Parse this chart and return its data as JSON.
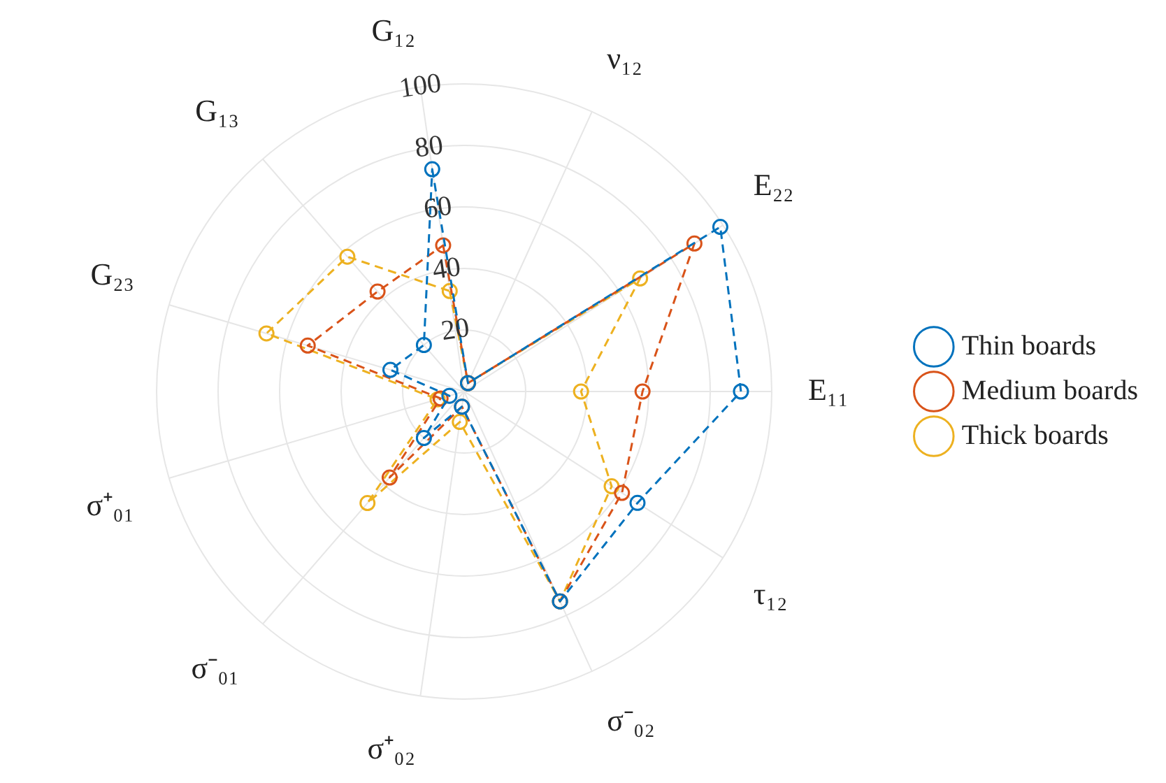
{
  "chart_data": {
    "type": "radar",
    "categories": [
      "G₁₂",
      "ν₁₂",
      "E₂₂",
      "E₁₁",
      "τ₁₂",
      "σ⁻₀₂",
      "σ⁺₀₂",
      "σ⁻₀₁",
      "σ⁺₀₁",
      "G₂₃",
      "G₁₃"
    ],
    "series": [
      {
        "name": "Thin boards",
        "color": "#0072bd",
        "values": [
          73,
          3,
          99,
          90,
          67,
          75,
          5,
          20,
          5,
          25,
          20
        ]
      },
      {
        "name": "Medium boards",
        "color": "#d95319",
        "values": [
          48,
          3,
          89,
          58,
          61,
          75,
          5,
          37,
          8,
          53,
          43
        ]
      },
      {
        "name": "Thick boards",
        "color": "#edb120",
        "values": [
          33,
          3,
          68,
          38,
          57,
          75,
          10,
          48,
          9,
          67,
          58
        ]
      }
    ],
    "ylim": [
      0,
      100
    ],
    "yticks": [
      20,
      40,
      60,
      80,
      100
    ],
    "grid": true,
    "legend": "right",
    "marker": "circle",
    "line_style": "dashed"
  }
}
